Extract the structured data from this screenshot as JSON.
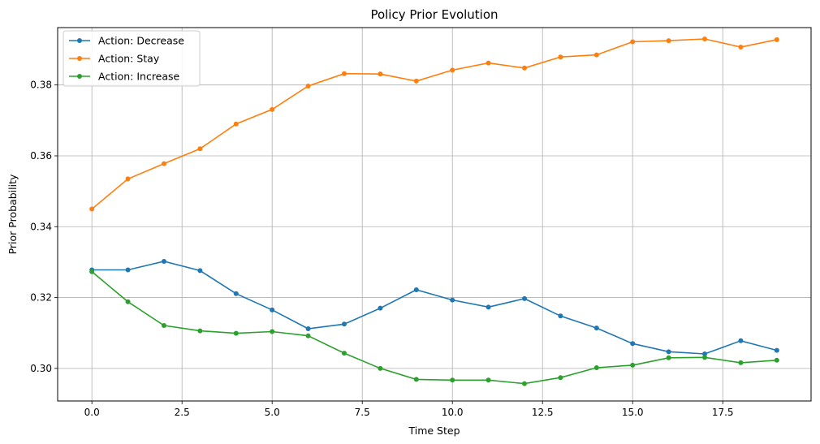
{
  "chart_data": {
    "type": "line",
    "title": "Policy Prior Evolution",
    "xlabel": "Time Step",
    "ylabel": "Prior Probability",
    "x": [
      0,
      1,
      2,
      3,
      4,
      5,
      6,
      7,
      8,
      9,
      10,
      11,
      12,
      13,
      14,
      15,
      16,
      17,
      18,
      19
    ],
    "xlim": [
      -0.95,
      19.95
    ],
    "ylim": [
      0.2908,
      0.3962
    ],
    "xticks": [
      0.0,
      2.5,
      5.0,
      7.5,
      10.0,
      12.5,
      15.0,
      17.5
    ],
    "xtick_labels": [
      "0.0",
      "2.5",
      "5.0",
      "7.5",
      "10.0",
      "12.5",
      "15.0",
      "17.5"
    ],
    "yticks": [
      0.3,
      0.32,
      0.34,
      0.36,
      0.38
    ],
    "ytick_labels": [
      "0.30",
      "0.32",
      "0.34",
      "0.36",
      "0.38"
    ],
    "grid": true,
    "legend_position": "upper-left",
    "series": [
      {
        "name": "Action: Decrease",
        "color": "#1f77b4",
        "values": [
          0.3278,
          0.3278,
          0.3302,
          0.3276,
          0.3211,
          0.3165,
          0.3112,
          0.3125,
          0.317,
          0.3222,
          0.3193,
          0.3173,
          0.3197,
          0.3148,
          0.3114,
          0.307,
          0.3047,
          0.3041,
          0.3078,
          0.3051
        ]
      },
      {
        "name": "Action: Stay",
        "color": "#ff7f0e",
        "values": [
          0.345,
          0.3535,
          0.3578,
          0.362,
          0.369,
          0.3731,
          0.3797,
          0.3832,
          0.3831,
          0.3811,
          0.3842,
          0.3862,
          0.3848,
          0.3879,
          0.3885,
          0.3922,
          0.3925,
          0.393,
          0.3907,
          0.3928
        ]
      },
      {
        "name": "Action: Increase",
        "color": "#2ca02c",
        "values": [
          0.3273,
          0.3188,
          0.3121,
          0.3106,
          0.3099,
          0.3104,
          0.3092,
          0.3043,
          0.3,
          0.2969,
          0.2967,
          0.2967,
          0.2957,
          0.2974,
          0.3002,
          0.3009,
          0.303,
          0.3031,
          0.3016,
          0.3023
        ]
      }
    ]
  }
}
